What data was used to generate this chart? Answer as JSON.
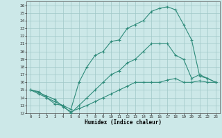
{
  "xlabel": "Humidex (Indice chaleur)",
  "bg_color": "#cce8e8",
  "line_color": "#2e8b7a",
  "grid_color": "#a0c8c8",
  "xlim": [
    -0.5,
    23.5
  ],
  "ylim": [
    12,
    26.5
  ],
  "xticks": [
    0,
    1,
    2,
    3,
    4,
    5,
    6,
    7,
    8,
    9,
    10,
    11,
    12,
    13,
    14,
    15,
    16,
    17,
    18,
    19,
    20,
    21,
    22,
    23
  ],
  "yticks": [
    12,
    13,
    14,
    15,
    16,
    17,
    18,
    19,
    20,
    21,
    22,
    23,
    24,
    25,
    26
  ],
  "line1_x": [
    0,
    1,
    2,
    3,
    4,
    5,
    6,
    7,
    8,
    9,
    10,
    11,
    12,
    13,
    14,
    15,
    16,
    17,
    18,
    19,
    20,
    21,
    22,
    23
  ],
  "line1_y": [
    15,
    14.7,
    14.2,
    13.8,
    12.8,
    12.2,
    12.6,
    13.0,
    13.5,
    14.0,
    14.5,
    15.0,
    15.5,
    16.0,
    16.0,
    16.0,
    16.0,
    16.3,
    16.5,
    16.0,
    16.0,
    16.2,
    16.0,
    16.0
  ],
  "line2_x": [
    0,
    1,
    2,
    3,
    4,
    5,
    6,
    7,
    8,
    9,
    10,
    11,
    12,
    13,
    14,
    15,
    16,
    17,
    18,
    19,
    20,
    21,
    22,
    23
  ],
  "line2_y": [
    15,
    14.8,
    14.0,
    13.2,
    13.0,
    12.5,
    16.0,
    18.0,
    19.5,
    20.0,
    21.3,
    21.5,
    23.0,
    23.5,
    24.0,
    25.2,
    25.6,
    25.8,
    25.4,
    23.5,
    21.5,
    16.8,
    16.5,
    16.0
  ],
  "line3_x": [
    0,
    1,
    2,
    3,
    4,
    5,
    6,
    7,
    8,
    9,
    10,
    11,
    12,
    13,
    14,
    15,
    16,
    17,
    18,
    19,
    20,
    21,
    22,
    23
  ],
  "line3_y": [
    15,
    14.5,
    14.0,
    13.5,
    13.0,
    12.0,
    13.0,
    14.0,
    15.0,
    16.0,
    17.0,
    17.5,
    18.5,
    19.0,
    20.0,
    21.0,
    21.0,
    21.0,
    19.5,
    19.0,
    16.5,
    17.0,
    16.5,
    16.0
  ]
}
